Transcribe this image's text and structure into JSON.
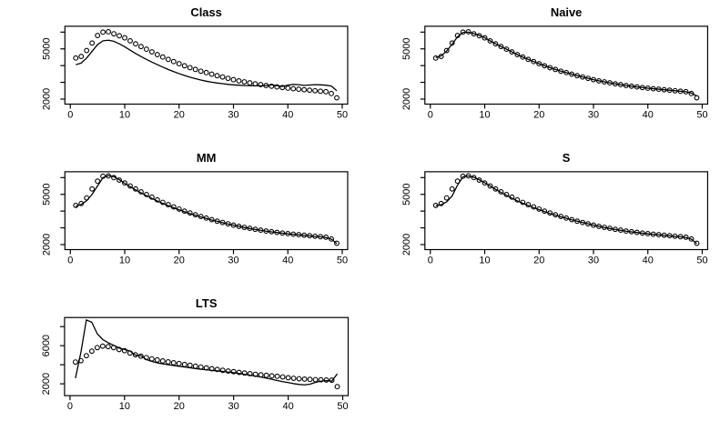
{
  "figure": {
    "background": "#ffffff",
    "foreground": "#000000",
    "panel_titles": [
      "Class",
      "Naive",
      "MM",
      "S",
      "LTS"
    ]
  },
  "chart_data": [
    {
      "type": "line",
      "title": "Class",
      "x_start": 1,
      "x_step": 1,
      "xlim": [
        -1,
        51
      ],
      "ylim": [
        1700,
        6350
      ],
      "grid": false,
      "x_ticks": {
        "values": [
          0,
          10,
          20,
          30,
          40,
          50
        ],
        "labels": [
          "0",
          "10",
          "20",
          "30",
          "40",
          "50"
        ]
      },
      "y_ticks": {
        "values": [
          2000,
          3000,
          4000,
          5000,
          6000
        ],
        "labels": [
          "2000",
          "",
          "",
          "5000",
          ""
        ]
      },
      "series": [
        {
          "name": "estimate-line",
          "type": "line",
          "color": "#000000",
          "values": [
            4050,
            4150,
            4450,
            4850,
            5250,
            5480,
            5520,
            5450,
            5300,
            5120,
            4920,
            4720,
            4540,
            4370,
            4210,
            4060,
            3910,
            3770,
            3640,
            3520,
            3410,
            3310,
            3220,
            3140,
            3070,
            3010,
            2960,
            2920,
            2880,
            2850,
            2830,
            2810,
            2800,
            2790,
            2790,
            2810,
            2850,
            2800,
            2760,
            2830,
            2880,
            2860,
            2820,
            2840,
            2860,
            2850,
            2830,
            2780,
            2500
          ]
        },
        {
          "name": "reference-circles",
          "type": "points",
          "marker": "open-circle",
          "color": "#000000",
          "values": [
            4450,
            4550,
            4900,
            5350,
            5800,
            6000,
            6020,
            5900,
            5780,
            5660,
            5480,
            5300,
            5140,
            4980,
            4820,
            4660,
            4510,
            4370,
            4240,
            4110,
            3990,
            3880,
            3770,
            3670,
            3580,
            3490,
            3400,
            3320,
            3240,
            3160,
            3090,
            3030,
            2970,
            2910,
            2860,
            2810,
            2770,
            2730,
            2690,
            2650,
            2620,
            2590,
            2560,
            2530,
            2500,
            2470,
            2440,
            2330,
            2080
          ]
        }
      ]
    },
    {
      "type": "line",
      "title": "Naive",
      "x_start": 1,
      "x_step": 1,
      "xlim": [
        -1,
        51
      ],
      "ylim": [
        1700,
        6350
      ],
      "grid": false,
      "x_ticks": {
        "values": [
          0,
          10,
          20,
          30,
          40,
          50
        ],
        "labels": [
          "0",
          "10",
          "20",
          "30",
          "40",
          "50"
        ]
      },
      "y_ticks": {
        "values": [
          2000,
          3000,
          4000,
          5000,
          6000
        ],
        "labels": [
          "2000",
          "",
          "",
          "5000",
          ""
        ]
      },
      "series": [
        {
          "name": "estimate-line",
          "type": "line",
          "color": "#000000",
          "values": [
            4480,
            4580,
            4870,
            5280,
            5720,
            5980,
            6000,
            5910,
            5800,
            5670,
            5480,
            5300,
            5140,
            4980,
            4820,
            4660,
            4510,
            4370,
            4240,
            4110,
            3990,
            3880,
            3770,
            3670,
            3580,
            3490,
            3400,
            3320,
            3240,
            3160,
            3090,
            3030,
            2970,
            2910,
            2860,
            2810,
            2770,
            2730,
            2690,
            2650,
            2620,
            2590,
            2560,
            2530,
            2500,
            2470,
            2440,
            2360,
            2180
          ]
        },
        {
          "name": "reference-circles",
          "type": "points",
          "marker": "open-circle",
          "color": "#000000",
          "values": [
            4450,
            4550,
            4900,
            5350,
            5800,
            6000,
            6020,
            5900,
            5780,
            5660,
            5480,
            5300,
            5140,
            4980,
            4820,
            4660,
            4510,
            4370,
            4240,
            4110,
            3990,
            3880,
            3770,
            3670,
            3580,
            3490,
            3400,
            3320,
            3240,
            3160,
            3090,
            3030,
            2970,
            2910,
            2860,
            2810,
            2770,
            2730,
            2690,
            2650,
            2620,
            2590,
            2560,
            2530,
            2500,
            2470,
            2440,
            2330,
            2080
          ]
        }
      ]
    },
    {
      "type": "line",
      "title": "MM",
      "x_start": 1,
      "x_step": 1,
      "xlim": [
        -1,
        51
      ],
      "ylim": [
        1700,
        6350
      ],
      "grid": false,
      "x_ticks": {
        "values": [
          0,
          10,
          20,
          30,
          40,
          50
        ],
        "labels": [
          "0",
          "10",
          "20",
          "30",
          "40",
          "50"
        ]
      },
      "y_ticks": {
        "values": [
          2000,
          3000,
          4000,
          5000,
          6000
        ],
        "labels": [
          "2000",
          "",
          "",
          "5000",
          ""
        ]
      },
      "series": [
        {
          "name": "estimate-line",
          "type": "line",
          "color": "#000000",
          "values": [
            4280,
            4400,
            4620,
            5000,
            5500,
            6000,
            6120,
            6060,
            5880,
            5660,
            5460,
            5270,
            5090,
            4920,
            4760,
            4600,
            4460,
            4330,
            4200,
            4080,
            3960,
            3850,
            3750,
            3650,
            3560,
            3470,
            3390,
            3310,
            3230,
            3160,
            3090,
            3020,
            2960,
            2900,
            2850,
            2800,
            2760,
            2720,
            2680,
            2640,
            2610,
            2580,
            2550,
            2520,
            2490,
            2460,
            2420,
            2320,
            2060
          ]
        },
        {
          "name": "reference-circles",
          "type": "points",
          "marker": "open-circle",
          "color": "#000000",
          "values": [
            4340,
            4450,
            4790,
            5320,
            5790,
            6080,
            6100,
            6000,
            5850,
            5680,
            5500,
            5320,
            5150,
            4990,
            4830,
            4670,
            4520,
            4380,
            4250,
            4120,
            4000,
            3890,
            3780,
            3680,
            3580,
            3490,
            3400,
            3320,
            3240,
            3160,
            3090,
            3030,
            2970,
            2910,
            2860,
            2810,
            2770,
            2730,
            2690,
            2650,
            2620,
            2590,
            2560,
            2530,
            2500,
            2470,
            2440,
            2330,
            2080
          ]
        }
      ]
    },
    {
      "type": "line",
      "title": "S",
      "x_start": 1,
      "x_step": 1,
      "xlim": [
        -1,
        51
      ],
      "ylim": [
        1700,
        6350
      ],
      "grid": false,
      "x_ticks": {
        "values": [
          0,
          10,
          20,
          30,
          40,
          50
        ],
        "labels": [
          "0",
          "10",
          "20",
          "30",
          "40",
          "50"
        ]
      },
      "y_ticks": {
        "values": [
          2000,
          3000,
          4000,
          5000,
          6000
        ],
        "labels": [
          "2000",
          "",
          "",
          "5000",
          ""
        ]
      },
      "series": [
        {
          "name": "estimate-line",
          "type": "line",
          "color": "#000000",
          "values": [
            4310,
            4380,
            4550,
            4900,
            5550,
            6050,
            6100,
            6020,
            5870,
            5690,
            5500,
            5300,
            5110,
            4940,
            4770,
            4610,
            4470,
            4340,
            4210,
            4090,
            3970,
            3860,
            3760,
            3660,
            3570,
            3480,
            3400,
            3320,
            3240,
            3160,
            3090,
            3020,
            2960,
            2900,
            2850,
            2800,
            2760,
            2720,
            2680,
            2640,
            2610,
            2580,
            2550,
            2520,
            2490,
            2460,
            2420,
            2320,
            2060
          ]
        },
        {
          "name": "reference-circles",
          "type": "points",
          "marker": "open-circle",
          "color": "#000000",
          "values": [
            4340,
            4450,
            4790,
            5320,
            5790,
            6080,
            6100,
            6000,
            5850,
            5680,
            5500,
            5320,
            5150,
            4990,
            4830,
            4670,
            4520,
            4380,
            4250,
            4120,
            4000,
            3890,
            3780,
            3680,
            3580,
            3490,
            3400,
            3320,
            3240,
            3160,
            3090,
            3030,
            2970,
            2910,
            2860,
            2810,
            2770,
            2730,
            2690,
            2650,
            2620,
            2590,
            2560,
            2530,
            2500,
            2470,
            2440,
            2330,
            2080
          ]
        }
      ]
    },
    {
      "type": "line",
      "title": "LTS",
      "x_start": 1,
      "x_step": 1,
      "xlim": [
        -1,
        51
      ],
      "ylim": [
        760,
        8950
      ],
      "grid": false,
      "x_ticks": {
        "values": [
          0,
          10,
          20,
          30,
          40,
          50
        ],
        "labels": [
          "0",
          "10",
          "20",
          "30",
          "40",
          "50"
        ]
      },
      "y_ticks": {
        "values": [
          2000,
          4000,
          6000,
          8000
        ],
        "labels": [
          "2000",
          "",
          "6000",
          ""
        ]
      },
      "series": [
        {
          "name": "estimate-line",
          "type": "line",
          "color": "#000000",
          "values": [
            2600,
            5300,
            8700,
            8450,
            7250,
            6650,
            6300,
            6050,
            5750,
            5600,
            5450,
            5000,
            4950,
            4550,
            4350,
            4200,
            4100,
            4000,
            3920,
            3840,
            3760,
            3680,
            3600,
            3530,
            3470,
            3410,
            3350,
            3290,
            3230,
            3170,
            3080,
            2990,
            2900,
            2810,
            2710,
            2600,
            2470,
            2340,
            2230,
            2130,
            2020,
            1930,
            1890,
            1960,
            2150,
            2280,
            2330,
            2280,
            3050
          ]
        },
        {
          "name": "reference-circles",
          "type": "points",
          "marker": "open-circle",
          "color": "#000000",
          "values": [
            4280,
            4430,
            4950,
            5430,
            5800,
            5950,
            5900,
            5800,
            5600,
            5470,
            5230,
            5050,
            4900,
            4750,
            4620,
            4500,
            4400,
            4300,
            4210,
            4120,
            4030,
            3940,
            3850,
            3760,
            3670,
            3580,
            3500,
            3420,
            3340,
            3270,
            3200,
            3130,
            3060,
            3000,
            2940,
            2890,
            2840,
            2790,
            2720,
            2640,
            2580,
            2530,
            2490,
            2460,
            2440,
            2420,
            2400,
            2380,
            1700
          ]
        }
      ]
    }
  ]
}
